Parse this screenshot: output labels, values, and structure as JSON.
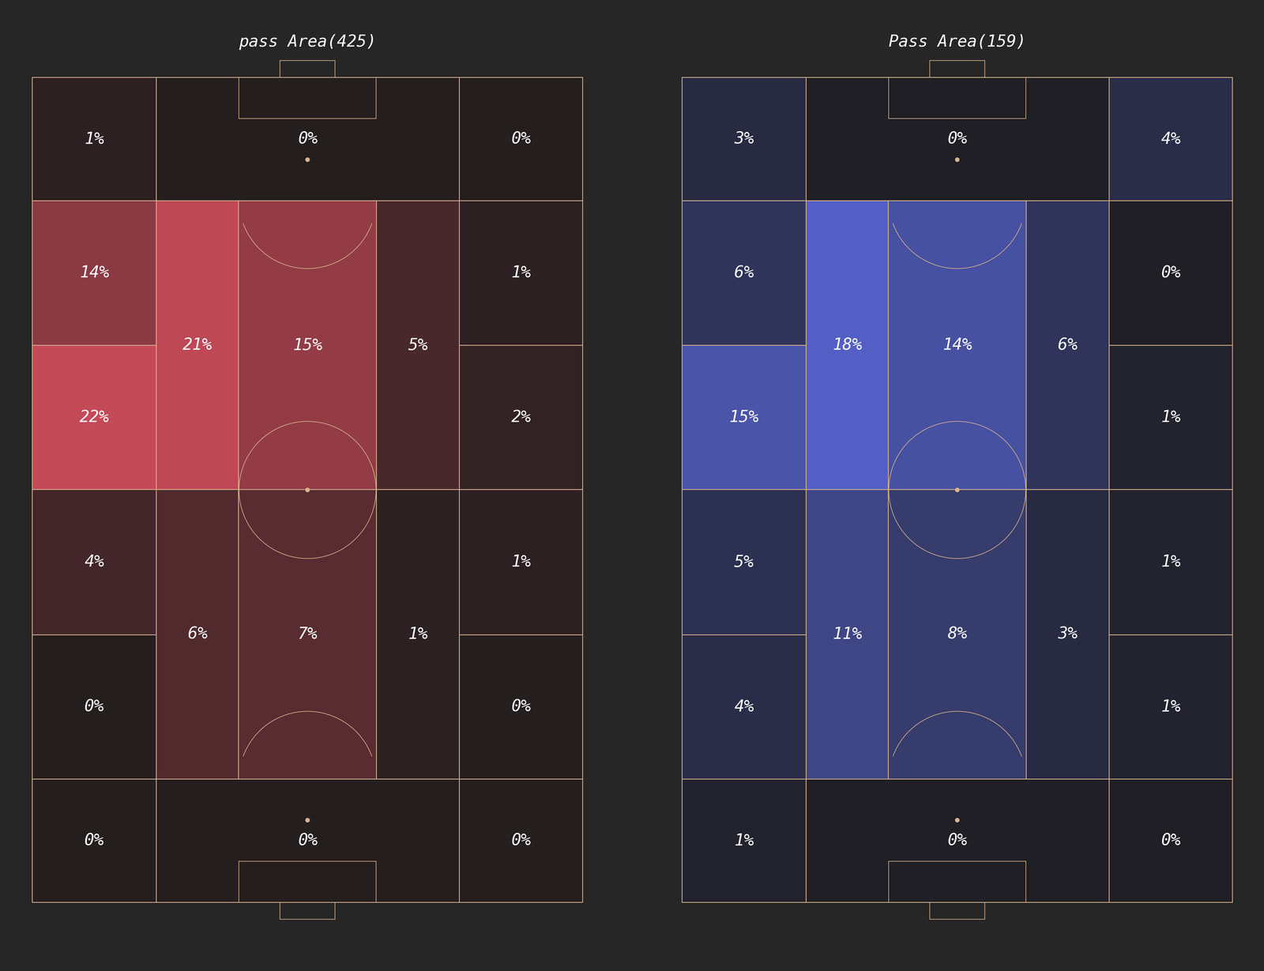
{
  "chart_data": [
    {
      "type": "heatmap",
      "title": "pass Area(425)",
      "color": "#d9505f",
      "values": [
        1,
        0,
        0,
        14,
        21,
        15,
        5,
        1,
        22,
        2,
        4,
        6,
        7,
        1,
        1,
        0,
        0,
        0,
        0,
        0
      ],
      "value_labels": [
        "1%",
        "0%",
        "0%",
        "14%",
        "21%",
        "15%",
        "5%",
        "1%",
        "22%",
        "2%",
        "4%",
        "6%",
        "7%",
        "1%",
        "1%",
        "0%",
        "0%",
        "0%",
        "0%",
        "0%"
      ],
      "data_labels": true
    },
    {
      "type": "heatmap",
      "title": "Pass Area(159)",
      "color": "#5a67d8",
      "values": [
        3,
        0,
        4,
        6,
        18,
        14,
        6,
        0,
        15,
        1,
        5,
        11,
        8,
        3,
        1,
        4,
        1,
        1,
        0,
        0
      ],
      "value_labels": [
        "3%",
        "0%",
        "4%",
        "6%",
        "18%",
        "14%",
        "6%",
        "0%",
        "15%",
        "1%",
        "5%",
        "11%",
        "8%",
        "3%",
        "1%",
        "4%",
        "1%",
        "1%",
        "0%",
        "0%"
      ],
      "data_labels": true
    }
  ]
}
